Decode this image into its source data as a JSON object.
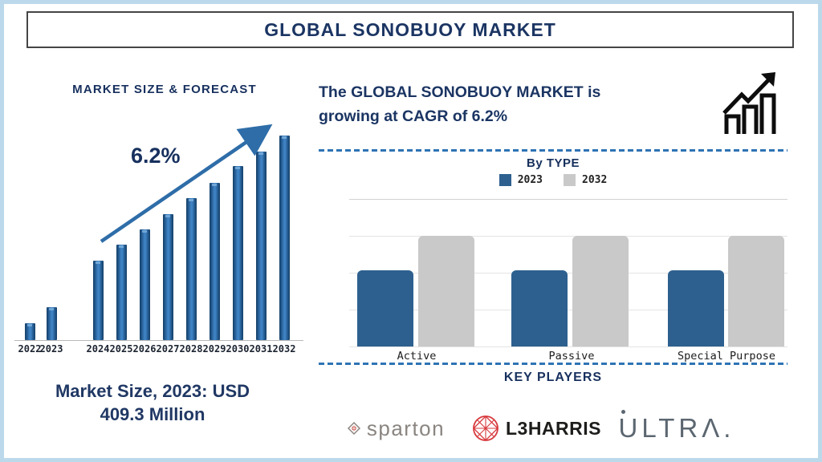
{
  "header": {
    "title": "GLOBAL SONOBUOY MARKET"
  },
  "colors": {
    "navy": "#1B3563",
    "accent_blue": "#2E6DA8",
    "bar_blue": "#2D608F",
    "bar_gray": "#C9C9C9",
    "divider_blue": "#2E73B4",
    "page_border": "#BCD9EB"
  },
  "left_panel": {
    "chart_title": "MARKET SIZE & FORECAST",
    "cagr_annotation": "6.2%",
    "market_size_note": {
      "line1": "Market Size, 2023: USD",
      "line2": "409.3 Million"
    }
  },
  "right_panel": {
    "headline_line1": "The GLOBAL SONOBUOY MARKET is",
    "headline_line2": "growing at CAGR of 6.2%",
    "growth_icon": "bar-chart-growth-icon",
    "by_type": {
      "title": "By TYPE",
      "legend": [
        {
          "label": "2023",
          "color": "#2D608F"
        },
        {
          "label": "2032",
          "color": "#C9C9C9"
        }
      ]
    },
    "key_players": {
      "title": "KEY PLAYERS",
      "players": [
        {
          "name": "sparton",
          "display": "sparton",
          "icon": "sparton-diamond-icon"
        },
        {
          "name": "L3Harris",
          "display": "L3HARRIS",
          "icon": "l3harris-globe-icon"
        },
        {
          "name": "Ultra",
          "display": "ULTRΛ.",
          "icon": "ultra-dot-mark"
        }
      ]
    }
  },
  "chart_data": [
    {
      "id": "market_size_forecast",
      "type": "bar",
      "title": "MARKET SIZE & FORECAST",
      "categories": [
        "2022",
        "2023",
        "2024",
        "2025",
        "2026",
        "2027",
        "2028",
        "2029",
        "2030",
        "2031",
        "2032"
      ],
      "values": [
        21,
        41,
        99,
        119,
        138,
        157,
        177,
        196,
        217,
        235,
        255
      ],
      "value_axis": "unlabeled; values are relative bar heights estimated from pixels",
      "annotation": "6.2% CAGR trend arrow rising left-to-right",
      "highlight": "Market Size 2023 = USD 409.3 Million",
      "bar_color": "#2E6DA8",
      "grid": false
    },
    {
      "id": "by_type",
      "type": "bar",
      "title": "By TYPE",
      "categories": [
        "Active",
        "Passive",
        "Special Purpose"
      ],
      "series": [
        {
          "name": "2023",
          "values": [
            95,
            95,
            95
          ],
          "color": "#2D608F"
        },
        {
          "name": "2032",
          "values": [
            138,
            138,
            138
          ],
          "color": "#C9C9C9"
        }
      ],
      "value_axis": "unlabeled; values are relative bar heights estimated from pixels",
      "legend_position": "top",
      "grid": true
    }
  ]
}
